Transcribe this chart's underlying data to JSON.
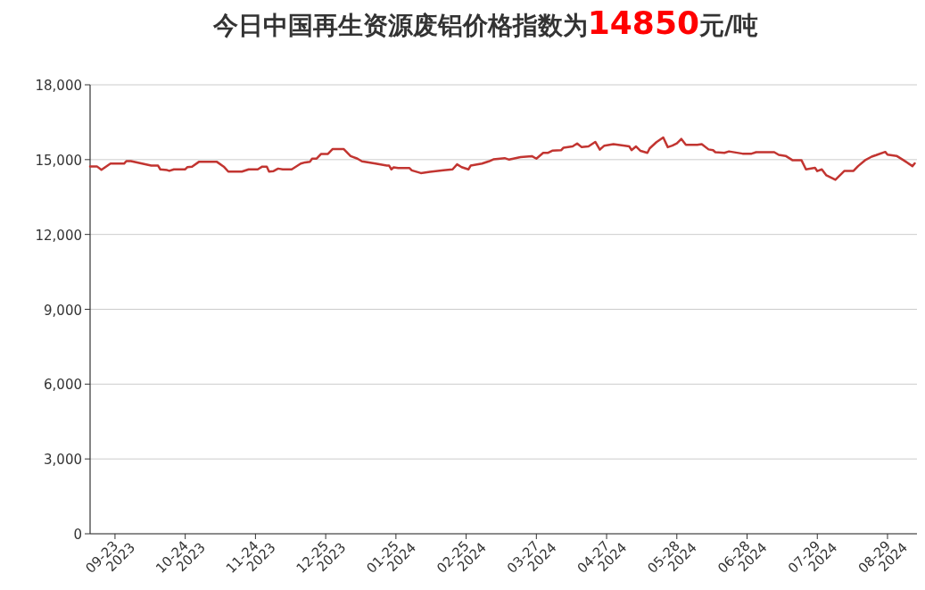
{
  "chart_data": {
    "type": "line",
    "title": "今日中国再生资源废铝价格指数为14850元/吨",
    "x": [
      "2023-09-12",
      "2023-09-15",
      "2023-09-17",
      "2023-09-20",
      "2023-09-21",
      "2023-09-27",
      "2023-09-28",
      "2023-09-30",
      "2023-10-09",
      "2023-10-12",
      "2023-10-13",
      "2023-10-16",
      "2023-10-17",
      "2023-10-19",
      "2023-10-24",
      "2023-10-25",
      "2023-10-27",
      "2023-10-30",
      "2023-11-07",
      "2023-11-10",
      "2023-11-12",
      "2023-11-18",
      "2023-11-21",
      "2023-11-25",
      "2023-11-27",
      "2023-11-29",
      "2023-11-30",
      "2023-12-02",
      "2023-12-04",
      "2023-12-06",
      "2023-12-10",
      "2023-12-14",
      "2023-12-16",
      "2023-12-18",
      "2023-12-19",
      "2023-12-21",
      "2023-12-23",
      "2023-12-26",
      "2023-12-28",
      "2024-01-02",
      "2024-01-05",
      "2024-01-08",
      "2024-01-10",
      "2024-01-16",
      "2024-01-21",
      "2024-01-22",
      "2024-01-23",
      "2024-01-24",
      "2024-01-26",
      "2024-01-31",
      "2024-02-01",
      "2024-02-05",
      "2024-02-09",
      "2024-02-15",
      "2024-02-19",
      "2024-02-21",
      "2024-02-23",
      "2024-02-26",
      "2024-02-27",
      "2024-03-03",
      "2024-03-06",
      "2024-03-08",
      "2024-03-13",
      "2024-03-15",
      "2024-03-20",
      "2024-03-25",
      "2024-03-27",
      "2024-03-30",
      "2024-04-01",
      "2024-04-03",
      "2024-04-07",
      "2024-04-08",
      "2024-04-12",
      "2024-04-14",
      "2024-04-16",
      "2024-04-19",
      "2024-04-22",
      "2024-04-24",
      "2024-04-26",
      "2024-04-30",
      "2024-05-05",
      "2024-05-07",
      "2024-05-08",
      "2024-05-10",
      "2024-05-12",
      "2024-05-15",
      "2024-05-16",
      "2024-05-19",
      "2024-05-22",
      "2024-05-24",
      "2024-05-26",
      "2024-05-28",
      "2024-05-30",
      "2024-06-01",
      "2024-06-06",
      "2024-06-08",
      "2024-06-11",
      "2024-06-13",
      "2024-06-14",
      "2024-06-18",
      "2024-06-20",
      "2024-06-26",
      "2024-06-30",
      "2024-07-02",
      "2024-07-10",
      "2024-07-12",
      "2024-07-15",
      "2024-07-18",
      "2024-07-22",
      "2024-07-24",
      "2024-07-28",
      "2024-07-29",
      "2024-07-31",
      "2024-08-02",
      "2024-08-06",
      "2024-08-07",
      "2024-08-10",
      "2024-08-14",
      "2024-08-16",
      "2024-08-19",
      "2024-08-22",
      "2024-08-24",
      "2024-08-28",
      "2024-08-29",
      "2024-09-02",
      "2024-09-05",
      "2024-09-09",
      "2024-09-10"
    ],
    "series": [
      {
        "color": "#c23531",
        "values": [
          14730,
          14730,
          14590,
          14780,
          14840,
          14840,
          14940,
          14940,
          14760,
          14760,
          14610,
          14580,
          14550,
          14610,
          14610,
          14700,
          14720,
          14910,
          14910,
          14720,
          14520,
          14520,
          14610,
          14610,
          14720,
          14720,
          14520,
          14540,
          14640,
          14610,
          14610,
          14840,
          14890,
          14910,
          15040,
          15040,
          15230,
          15230,
          15420,
          15420,
          15140,
          15040,
          14930,
          14840,
          14760,
          14760,
          14610,
          14690,
          14660,
          14660,
          14570,
          14460,
          14510,
          14570,
          14610,
          14810,
          14700,
          14610,
          14760,
          14840,
          14930,
          15010,
          15060,
          15000,
          15100,
          15140,
          15040,
          15270,
          15270,
          15360,
          15380,
          15480,
          15530,
          15650,
          15500,
          15530,
          15710,
          15400,
          15560,
          15620,
          15560,
          15530,
          15380,
          15530,
          15350,
          15270,
          15450,
          15700,
          15890,
          15500,
          15560,
          15650,
          15830,
          15590,
          15590,
          15620,
          15410,
          15380,
          15300,
          15270,
          15330,
          15240,
          15240,
          15300,
          15300,
          15190,
          15150,
          14980,
          14980,
          14610,
          14670,
          14540,
          14610,
          14370,
          14190,
          14280,
          14550,
          14550,
          14740,
          14970,
          15120,
          15180,
          15310,
          15200,
          15150,
          14980,
          14740,
          14850
        ]
      }
    ],
    "xlim": [
      "2023-09-12",
      "2024-09-11"
    ],
    "xticks": [
      {
        "value": "2023-09-23",
        "label": "09-23\n2023"
      },
      {
        "value": "2023-10-24",
        "label": "10-24\n2023"
      },
      {
        "value": "2023-11-24",
        "label": "11-24\n2023"
      },
      {
        "value": "2023-12-25",
        "label": "12-25\n2023"
      },
      {
        "value": "2024-01-25",
        "label": "01-25\n2024"
      },
      {
        "value": "2024-02-25",
        "label": "02-25\n2024"
      },
      {
        "value": "2024-03-27",
        "label": "03-27\n2024"
      },
      {
        "value": "2024-04-27",
        "label": "04-27\n2024"
      },
      {
        "value": "2024-05-28",
        "label": "05-28\n2024"
      },
      {
        "value": "2024-06-28",
        "label": "06-28\n2024"
      },
      {
        "value": "2024-07-29",
        "label": "07-29\n2024"
      },
      {
        "value": "2024-08-29",
        "label": "08-29\n2024"
      }
    ],
    "ylim": [
      0,
      18000
    ],
    "yticks": [
      0,
      {
        "value": 3000,
        "label": "3,000"
      },
      {
        "value": 6000,
        "label": "6,000"
      },
      {
        "value": 9000,
        "label": "9,000"
      },
      {
        "value": 12000,
        "label": "12,000"
      },
      {
        "value": 15000,
        "label": "15,000"
      },
      {
        "value": 18000,
        "label": "18,000"
      }
    ],
    "grid": "y",
    "marker": "none",
    "line_style": "solid"
  }
}
